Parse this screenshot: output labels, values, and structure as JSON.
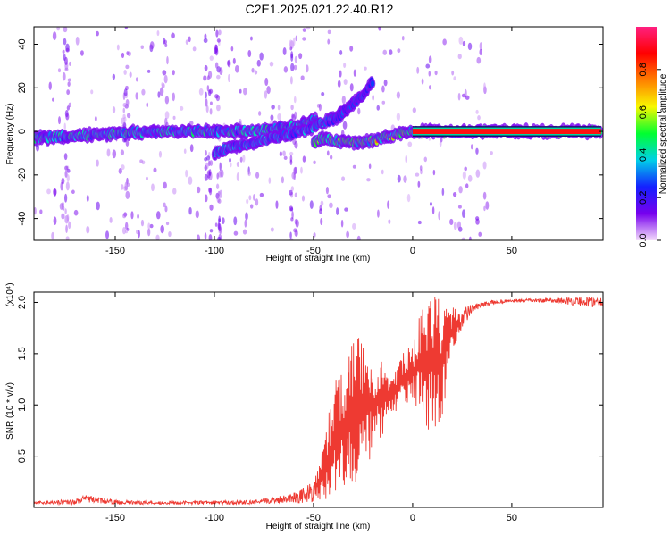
{
  "title": "C2E1.2025.021.22.40.R12",
  "colors": {
    "snr_line": "#ee3a32",
    "axis": "#000000",
    "background": "#ffffff"
  },
  "chart_data": [
    {
      "type": "heatmap",
      "xlabel": "Height of straight line (km)",
      "ylabel": "Frequency (Hz)",
      "xlim": [
        -191,
        96
      ],
      "ylim": [
        -50,
        48
      ],
      "xticks": [
        -150,
        -100,
        -50,
        0,
        50
      ],
      "yticks": [
        -40,
        -20,
        0,
        20,
        40
      ],
      "colorbar": {
        "label": "Normalized spectral amplitude",
        "range": [
          0,
          1
        ],
        "ticks": [
          "0.0",
          "0.2",
          "0.4",
          "0.6",
          "0.8"
        ],
        "colormap": [
          "#f4ddfb",
          "#7700ee",
          "#1420ff",
          "#00d0e8",
          "#00ff30",
          "#f8f800",
          "#ff8000",
          "#ff0000",
          "#ff2080"
        ]
      },
      "tracks": [
        {
          "x": [
            -191,
            -170,
            -150,
            -130,
            -110,
            -100,
            -90,
            -80,
            -70,
            -60,
            -50,
            -48
          ],
          "y": [
            -3,
            -2,
            -1,
            0,
            0,
            0,
            0,
            0,
            1,
            2,
            5,
            6
          ],
          "amplitude": 0.45
        },
        {
          "x": [
            -100,
            -90,
            -80,
            -70,
            -60,
            -50,
            -45,
            -40,
            -35,
            -30
          ],
          "y": [
            -10,
            -7,
            -5,
            -3,
            -1,
            2,
            4,
            6,
            9,
            13
          ],
          "amplitude": 0.35
        },
        {
          "x": [
            -40,
            -35,
            -30,
            -25,
            -20
          ],
          "y": [
            5,
            9,
            13,
            17,
            23
          ],
          "amplitude": 0.25
        },
        {
          "x": [
            -50,
            -45,
            -40,
            -35,
            -30,
            -25,
            -20,
            -15,
            -10,
            -5,
            0,
            10,
            20,
            40,
            60,
            95
          ],
          "y": [
            -5,
            -3,
            -4,
            -5,
            -5,
            -5,
            -4,
            -3,
            -2,
            -1,
            0,
            0,
            0,
            0,
            0,
            0
          ],
          "amplitude": 0.6
        },
        {
          "x": [
            0,
            95
          ],
          "y": [
            0,
            0
          ],
          "amplitude": 0.95
        }
      ]
    },
    {
      "type": "line",
      "xlabel": "Height of straight line (km)",
      "ylabel": "SNR (10 * v/v)",
      "y_multiplier": "(x10⁴)",
      "xlim": [
        -191,
        96
      ],
      "ylim": [
        0,
        2.1
      ],
      "xticks": [
        -150,
        -100,
        -50,
        0,
        50
      ],
      "yticks": [
        "0.5",
        "1.0",
        "1.5",
        "2.0"
      ],
      "series": [
        {
          "envelope": {
            "x": [
              -191,
              -170,
              -165,
              -150,
              -120,
              -80,
              -70,
              -60,
              -55,
              -50,
              -45,
              -40,
              -35,
              -30,
              -25,
              -20,
              -15,
              -10,
              -5,
              0,
              5,
              10,
              15,
              20,
              25,
              30,
              35,
              40,
              50,
              70,
              90,
              96
            ],
            "low": [
              0.03,
              0.03,
              0.05,
              0.03,
              0.03,
              0.03,
              0.04,
              0.05,
              0.03,
              0.05,
              0.05,
              0.1,
              0.15,
              0.2,
              0.3,
              0.5,
              0.7,
              0.9,
              1.0,
              1.05,
              0.8,
              0.7,
              0.9,
              1.5,
              1.75,
              1.9,
              1.95,
              1.98,
              2.0,
              2.0,
              1.95,
              1.97
            ],
            "high": [
              0.06,
              0.08,
              0.12,
              0.07,
              0.06,
              0.07,
              0.1,
              0.15,
              0.2,
              0.25,
              0.6,
              1.2,
              1.4,
              1.7,
              1.65,
              1.5,
              1.45,
              1.3,
              1.5,
              1.6,
              2.05,
              2.1,
              2.0,
              1.95,
              1.95,
              1.98,
              2.0,
              2.02,
              2.03,
              2.04,
              2.06,
              2.05
            ]
          }
        }
      ]
    }
  ]
}
